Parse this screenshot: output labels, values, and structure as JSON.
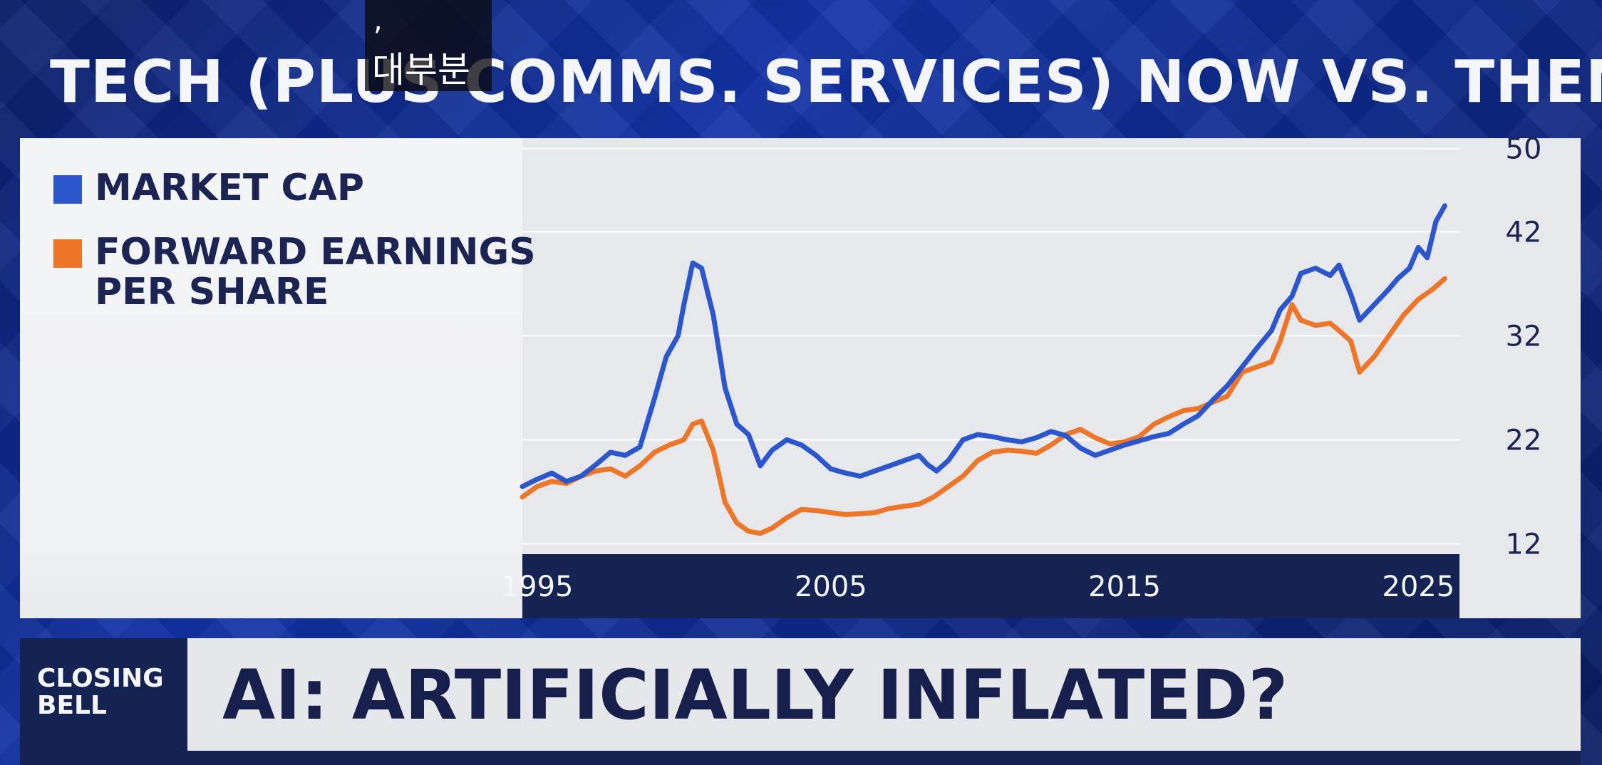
{
  "title": "TECH (PLUS COMMS. SERVICES) NOW VS. THEN",
  "subtitle_overlay": {
    "mark": ",",
    "text": "대부분"
  },
  "legend": [
    {
      "label_lines": [
        "MARKET CAP"
      ],
      "color": "#2b56cc"
    },
    {
      "label_lines": [
        "FORWARD EARNINGS",
        "PER SHARE"
      ],
      "color": "#ed7628"
    }
  ],
  "chart_data": {
    "type": "line",
    "title": "TECH (PLUS COMMS. SERVICES) NOW VS. THEN",
    "xlabel": "",
    "ylabel": "",
    "xlim": [
      1994.5,
      2026.4
    ],
    "ylim": [
      11,
      51
    ],
    "x_ticks": [
      1995,
      2005,
      2015,
      2025
    ],
    "x_tick_labels": [
      "1995",
      "2005",
      "2015",
      "2025"
    ],
    "y_ticks": [
      12,
      22,
      32,
      42,
      50
    ],
    "y_tick_labels": [
      "12",
      "22",
      "32",
      "42",
      "50"
    ],
    "grid": true,
    "legend_position": "left",
    "series": [
      {
        "name": "MARKET CAP",
        "color": "#2b56cc",
        "x": [
          1994.5,
          1995.0,
          1995.5,
          1996.0,
          1996.5,
          1997.0,
          1997.5,
          1998.0,
          1998.5,
          1999.0,
          1999.4,
          1999.8,
          2000.0,
          2000.3,
          2000.6,
          2001.0,
          2001.4,
          2001.8,
          2002.2,
          2002.6,
          2003.0,
          2003.5,
          2004.0,
          2004.5,
          2005.0,
          2005.5,
          2006.0,
          2006.5,
          2007.0,
          2007.5,
          2008.0,
          2008.3,
          2008.6,
          2009.0,
          2009.5,
          2010.0,
          2010.5,
          2011.0,
          2011.5,
          2012.0,
          2012.5,
          2013.0,
          2013.5,
          2014.0,
          2014.5,
          2015.0,
          2015.5,
          2016.0,
          2016.5,
          2017.0,
          2017.5,
          2018.0,
          2018.5,
          2019.0,
          2019.5,
          2020.0,
          2020.3,
          2020.7,
          2021.0,
          2021.5,
          2022.0,
          2022.3,
          2022.7,
          2023.0,
          2023.5,
          2024.0,
          2024.3,
          2024.7,
          2025.0,
          2025.3,
          2025.6,
          2025.9
        ],
        "values": [
          17.5,
          18.2,
          18.8,
          18.0,
          18.5,
          19.6,
          20.8,
          20.5,
          21.3,
          26.0,
          30.0,
          32.0,
          35.0,
          39.0,
          38.5,
          34.0,
          27.0,
          23.5,
          22.5,
          19.5,
          21.0,
          22.0,
          21.5,
          20.5,
          19.2,
          18.8,
          18.5,
          19.0,
          19.5,
          20.0,
          20.5,
          19.6,
          19.0,
          20.0,
          22.0,
          22.5,
          22.3,
          22.0,
          21.8,
          22.2,
          22.8,
          22.4,
          21.2,
          20.5,
          21.0,
          21.5,
          21.9,
          22.3,
          22.6,
          23.5,
          24.3,
          25.8,
          27.2,
          29.0,
          30.8,
          32.5,
          34.5,
          35.8,
          38.0,
          38.5,
          37.8,
          38.8,
          36.0,
          33.5,
          35.0,
          36.5,
          37.5,
          38.5,
          40.5,
          39.5,
          43.0,
          44.5
        ]
      },
      {
        "name": "FORWARD EARNINGS PER SHARE",
        "color": "#ed7628",
        "x": [
          1994.5,
          1995.0,
          1995.5,
          1996.0,
          1996.5,
          1997.0,
          1997.5,
          1998.0,
          1998.5,
          1999.0,
          1999.5,
          2000.0,
          2000.3,
          2000.6,
          2001.0,
          2001.4,
          2001.8,
          2002.2,
          2002.6,
          2003.0,
          2003.5,
          2004.0,
          2004.5,
          2005.0,
          2005.5,
          2006.0,
          2006.5,
          2007.0,
          2007.5,
          2008.0,
          2008.5,
          2009.0,
          2009.5,
          2010.0,
          2010.5,
          2011.0,
          2011.5,
          2012.0,
          2012.5,
          2013.0,
          2013.5,
          2014.0,
          2014.5,
          2015.0,
          2015.5,
          2016.0,
          2016.5,
          2017.0,
          2017.5,
          2018.0,
          2018.5,
          2019.0,
          2019.5,
          2020.0,
          2020.3,
          2020.7,
          2021.0,
          2021.5,
          2022.0,
          2022.3,
          2022.7,
          2023.0,
          2023.5,
          2024.0,
          2024.5,
          2025.0,
          2025.5,
          2025.9
        ],
        "values": [
          16.5,
          17.5,
          18.0,
          17.8,
          18.5,
          19.0,
          19.2,
          18.5,
          19.5,
          20.8,
          21.5,
          22.0,
          23.5,
          23.8,
          21.0,
          16.0,
          14.0,
          13.2,
          13.0,
          13.5,
          14.5,
          15.3,
          15.2,
          15.0,
          14.8,
          14.9,
          15.0,
          15.4,
          15.6,
          15.8,
          16.5,
          17.5,
          18.5,
          20.0,
          20.8,
          21.0,
          20.9,
          20.7,
          21.5,
          22.5,
          23.0,
          22.2,
          21.6,
          21.8,
          22.3,
          23.5,
          24.2,
          24.8,
          25.0,
          25.6,
          26.2,
          28.5,
          29.0,
          29.5,
          31.5,
          35.0,
          33.5,
          33.0,
          33.2,
          32.5,
          31.5,
          28.5,
          30.0,
          32.0,
          34.0,
          35.5,
          36.5,
          37.5
        ]
      }
    ]
  },
  "lower_third": {
    "show_lines": [
      "CLOSING",
      "BELL"
    ],
    "headline": "AI: ARTIFICIALLY INFLATED?"
  }
}
